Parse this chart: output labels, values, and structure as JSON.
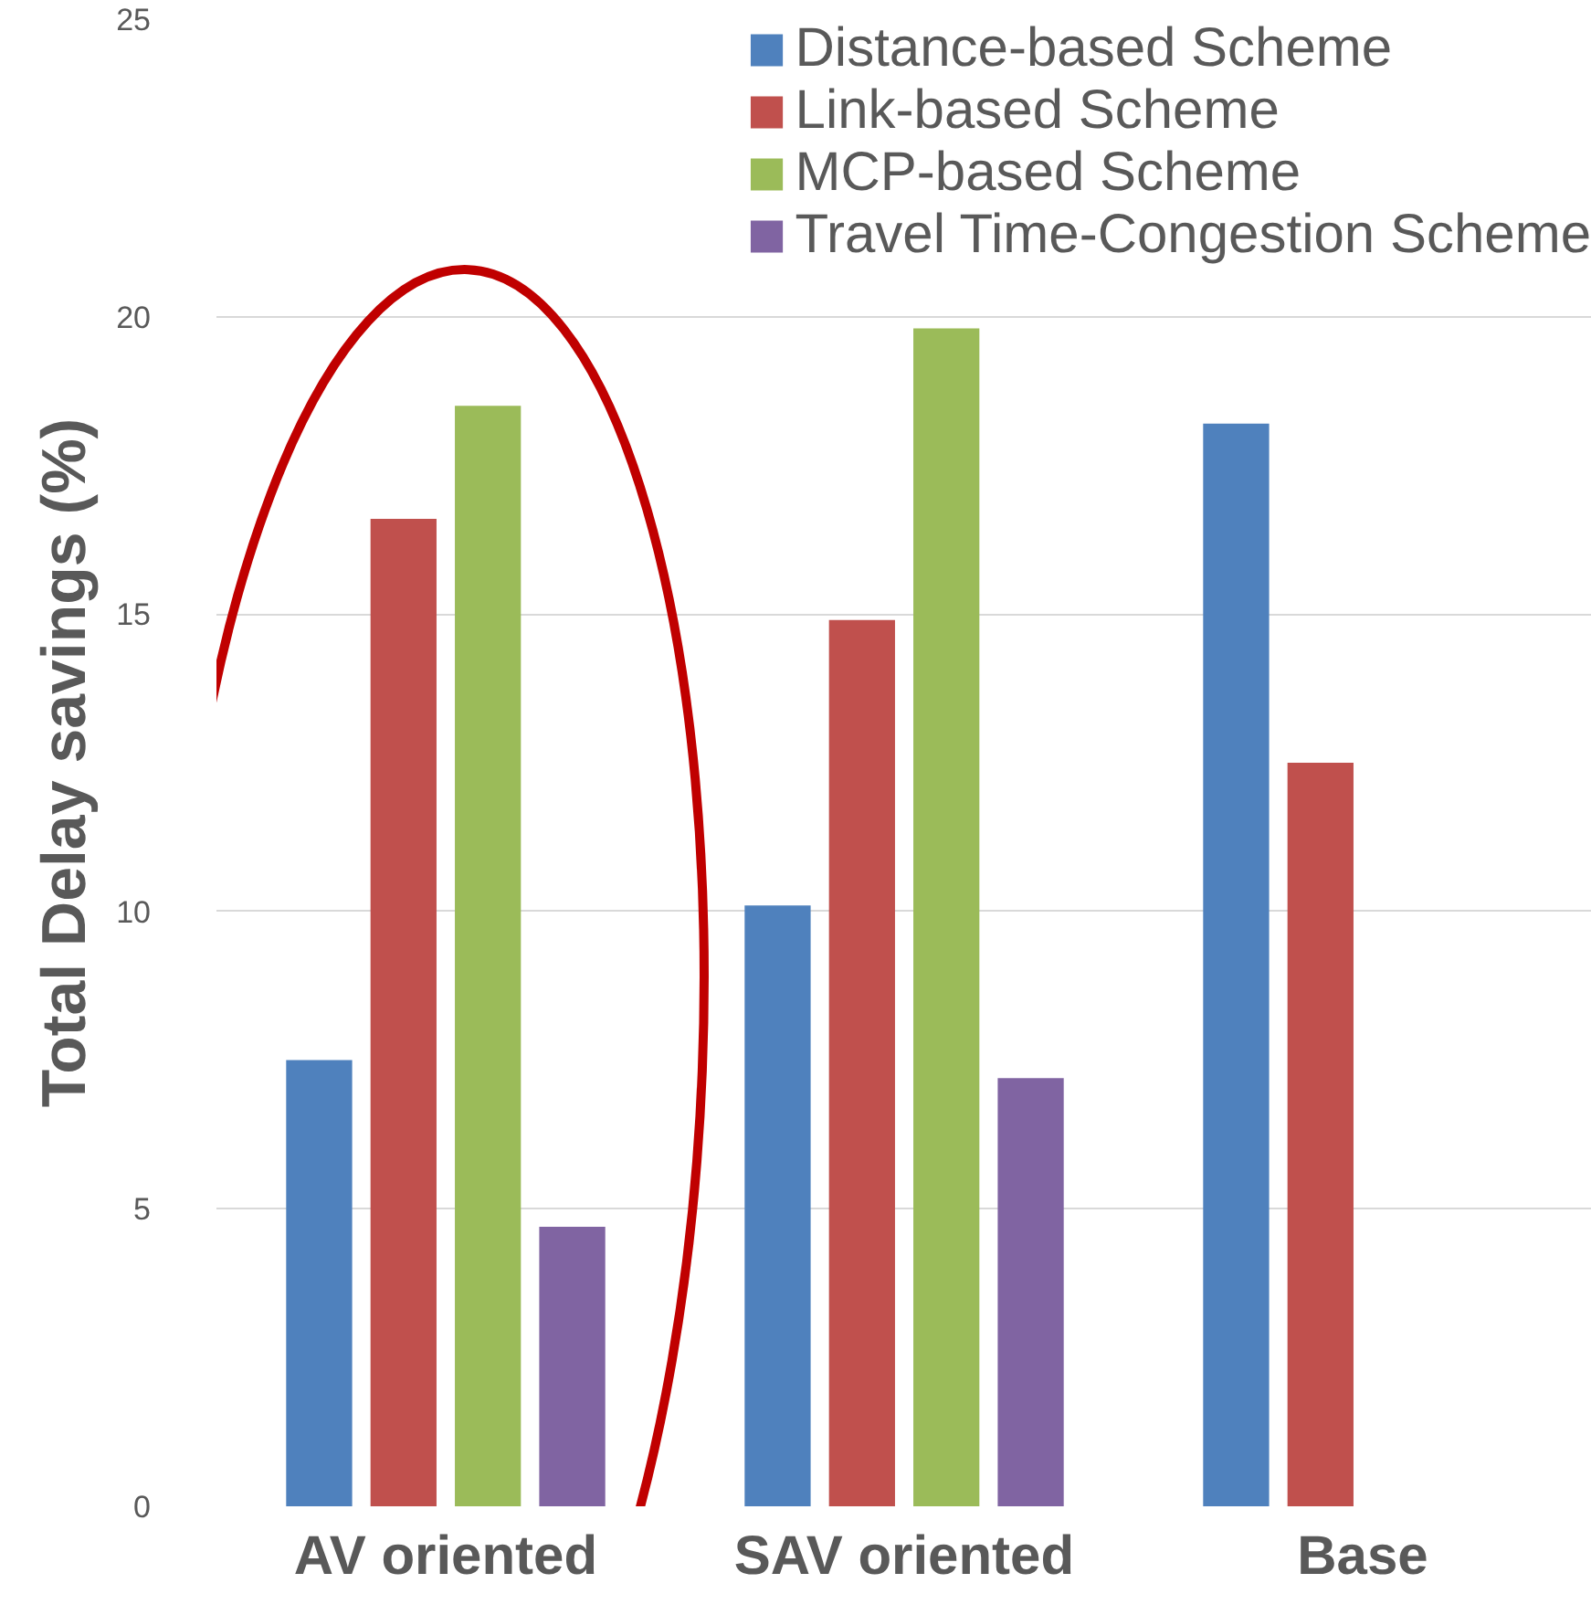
{
  "chart_data": {
    "type": "bar",
    "ylabel": "Total Delay savings (%)",
    "categories": [
      "AV oriented",
      "SAV oriented",
      "Base"
    ],
    "series": [
      {
        "name": "Distance-based Scheme",
        "color": "#4f81bd",
        "values": [
          7.5,
          10.1,
          18.2
        ]
      },
      {
        "name": "Link-based Scheme",
        "color": "#c0504d",
        "values": [
          16.6,
          14.9,
          12.5
        ]
      },
      {
        "name": "MCP-based Scheme",
        "color": "#9bbb59",
        "values": [
          18.5,
          19.8,
          null
        ]
      },
      {
        "name": "Travel Time-Congestion Scheme",
        "color": "#8064a2",
        "values": [
          4.7,
          7.2,
          null
        ]
      }
    ],
    "ylim": [
      0,
      25
    ],
    "yticks": [
      0,
      5,
      10,
      15,
      20,
      25
    ],
    "grid": "y",
    "legend": "top right"
  }
}
